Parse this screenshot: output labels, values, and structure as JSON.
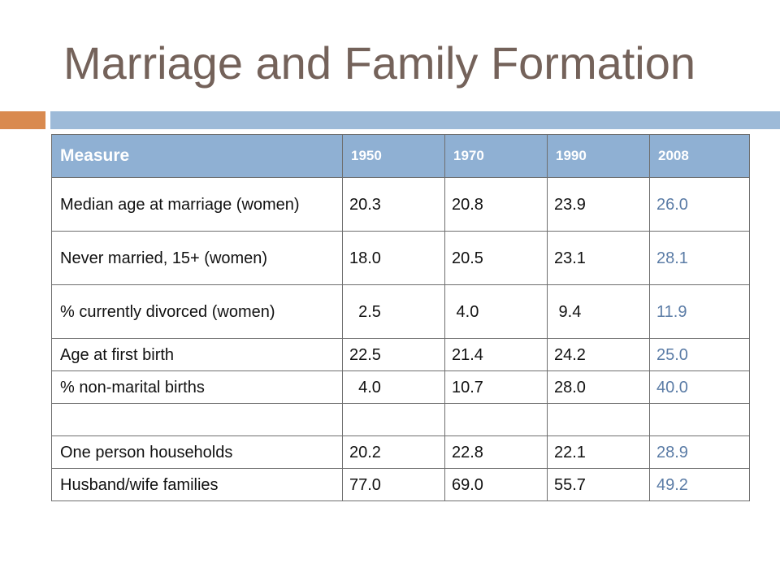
{
  "slide": {
    "title": "Marriage and Family Formation"
  },
  "colors": {
    "title": "#74625a",
    "accent_orange": "#d98a4f",
    "accent_blue": "#9dbad8",
    "header_fill": "#8fb0d3",
    "latest_year_text": "#5b7ca6"
  },
  "table": {
    "headers": [
      "Measure",
      "1950",
      "1970",
      "1990",
      "2008"
    ],
    "rows": [
      {
        "label": "Median age at marriage (women)",
        "values": [
          "20.3",
          "20.8",
          "23.9",
          "26.0"
        ]
      },
      {
        "label": "Never married, 15+ (women)",
        "values": [
          "18.0",
          "20.5",
          "23.1",
          "28.1"
        ]
      },
      {
        "label": "% currently divorced (women)",
        "values": [
          "  2.5",
          " 4.0",
          " 9.4",
          "11.9"
        ]
      },
      {
        "label": "Age at first birth",
        "values": [
          "22.5",
          "21.4",
          "24.2",
          "25.0"
        ]
      },
      {
        "label": "% non-marital births",
        "values": [
          "  4.0",
          "10.7",
          "28.0",
          "40.0"
        ]
      },
      {
        "label": "",
        "values": [
          "",
          "",
          "",
          ""
        ]
      },
      {
        "label": "One person households",
        "values": [
          "20.2",
          "22.8",
          "22.1",
          "28.9"
        ]
      },
      {
        "label": "Husband/wife families",
        "values": [
          "77.0",
          "69.0",
          "55.7",
          "49.2"
        ]
      }
    ]
  }
}
